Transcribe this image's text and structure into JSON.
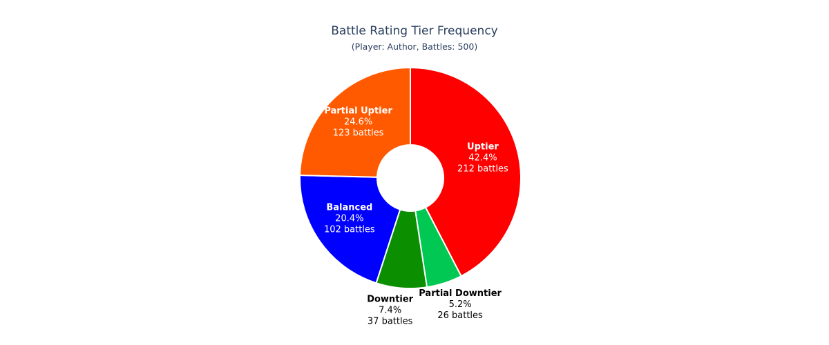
{
  "chart_data": {
    "type": "pie",
    "hole": true,
    "title": "Battle Rating Tier Frequency",
    "subtitle": "(Player: Author, Battles: 500)",
    "slices": [
      {
        "label": "Uptier",
        "value": 212,
        "percent": "42.4%",
        "count_label": "212 battles",
        "color": "#ff0000",
        "text_color": "#ffffff",
        "text_position": "inside"
      },
      {
        "label": "Partial Downtier",
        "value": 26,
        "percent": "5.2%",
        "count_label": "26 battles",
        "color": "#00c853",
        "text_color": "#000000",
        "text_position": "outside"
      },
      {
        "label": "Downtier",
        "value": 37,
        "percent": "7.4%",
        "count_label": "37 battles",
        "color": "#0b8f00",
        "text_color": "#000000",
        "text_position": "outside"
      },
      {
        "label": "Balanced",
        "value": 102,
        "percent": "20.4%",
        "count_label": "102 battles",
        "color": "#0000ff",
        "text_color": "#ffffff",
        "text_position": "inside"
      },
      {
        "label": "Partial Uptier",
        "value": 123,
        "percent": "24.6%",
        "count_label": "123 battles",
        "color": "#ff5a00",
        "text_color": "#ffffff",
        "text_position": "inside"
      }
    ],
    "title_color": "#2a3f5f"
  }
}
